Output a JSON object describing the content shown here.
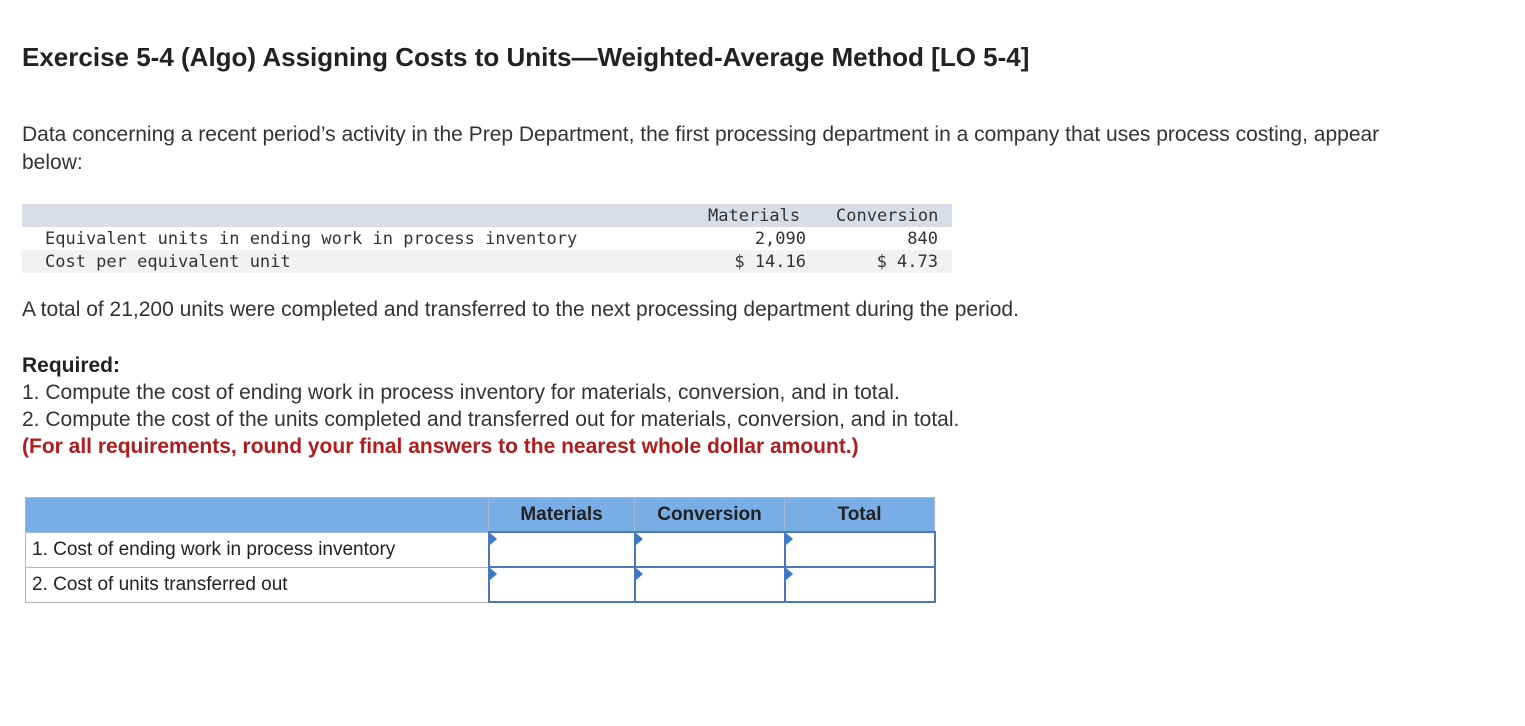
{
  "title": "Exercise 5-4 (Algo) Assigning Costs to Units—Weighted-Average Method [LO 5-4]",
  "intro": "Data concerning a recent period’s activity in the Prep Department, the first processing department in a company that uses process costing, appear below:",
  "data_table": {
    "headers": {
      "materials": "Materials",
      "conversion": "Conversion"
    },
    "rows": [
      {
        "label": "Equivalent units in ending work in process inventory",
        "materials": "2,090",
        "conversion": "840"
      },
      {
        "label": "Cost per equivalent unit",
        "materials": "$ 14.16",
        "conversion": "$ 4.73"
      }
    ]
  },
  "transfer_text": "A total of 21,200 units were completed and transferred to the next processing department during the period.",
  "required": {
    "heading": "Required:",
    "items": [
      "1. Compute the cost of ending work in process inventory for materials, conversion, and in total.",
      "2. Compute the cost of the units completed and transferred out for materials, conversion, and in total."
    ],
    "note": "(For all requirements, round your final answers to the nearest whole dollar amount.)"
  },
  "answer_table": {
    "headers": {
      "materials": "Materials",
      "conversion": "Conversion",
      "total": "Total"
    },
    "rows": [
      {
        "label": "1. Cost of ending work in process inventory",
        "materials": "",
        "conversion": "",
        "total": ""
      },
      {
        "label": "2. Cost of units transferred out",
        "materials": "",
        "conversion": "",
        "total": ""
      }
    ]
  },
  "colors": {
    "header_blue": "#79ade6",
    "note_red": "#b01c1c",
    "input_border": "#4a78b8"
  }
}
